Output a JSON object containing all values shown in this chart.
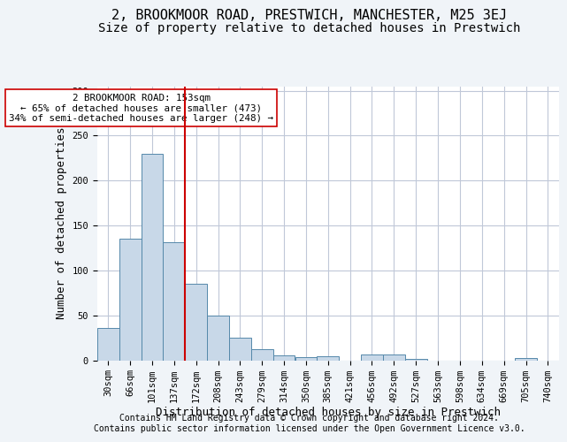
{
  "title_line1": "2, BROOKMOOR ROAD, PRESTWICH, MANCHESTER, M25 3EJ",
  "title_line2": "Size of property relative to detached houses in Prestwich",
  "xlabel": "Distribution of detached houses by size in Prestwich",
  "ylabel": "Number of detached properties",
  "bar_labels": [
    "30sqm",
    "66sqm",
    "101sqm",
    "137sqm",
    "172sqm",
    "208sqm",
    "243sqm",
    "279sqm",
    "314sqm",
    "350sqm",
    "385sqm",
    "421sqm",
    "456sqm",
    "492sqm",
    "527sqm",
    "563sqm",
    "598sqm",
    "634sqm",
    "669sqm",
    "705sqm",
    "740sqm"
  ],
  "bar_values": [
    36,
    135,
    230,
    131,
    85,
    50,
    25,
    12,
    5,
    3,
    4,
    0,
    6,
    6,
    1,
    0,
    0,
    0,
    0,
    2,
    0
  ],
  "bar_color": "#c8d8e8",
  "bar_edge_color": "#5588aa",
  "vline_color": "#cc0000",
  "annotation_text": "2 BROOKMOOR ROAD: 153sqm\n← 65% of detached houses are smaller (473)\n34% of semi-detached houses are larger (248) →",
  "annotation_box_color": "#ffffff",
  "annotation_box_edge_color": "#cc0000",
  "ylim": [
    0,
    305
  ],
  "yticks": [
    0,
    50,
    100,
    150,
    200,
    250,
    300
  ],
  "footer_line1": "Contains HM Land Registry data © Crown copyright and database right 2024.",
  "footer_line2": "Contains public sector information licensed under the Open Government Licence v3.0.",
  "background_color": "#f0f4f8",
  "plot_background_color": "#ffffff",
  "grid_color": "#c0c8d8",
  "title1_fontsize": 11,
  "title2_fontsize": 10,
  "xlabel_fontsize": 9,
  "ylabel_fontsize": 9,
  "tick_fontsize": 7.5,
  "footer_fontsize": 7
}
